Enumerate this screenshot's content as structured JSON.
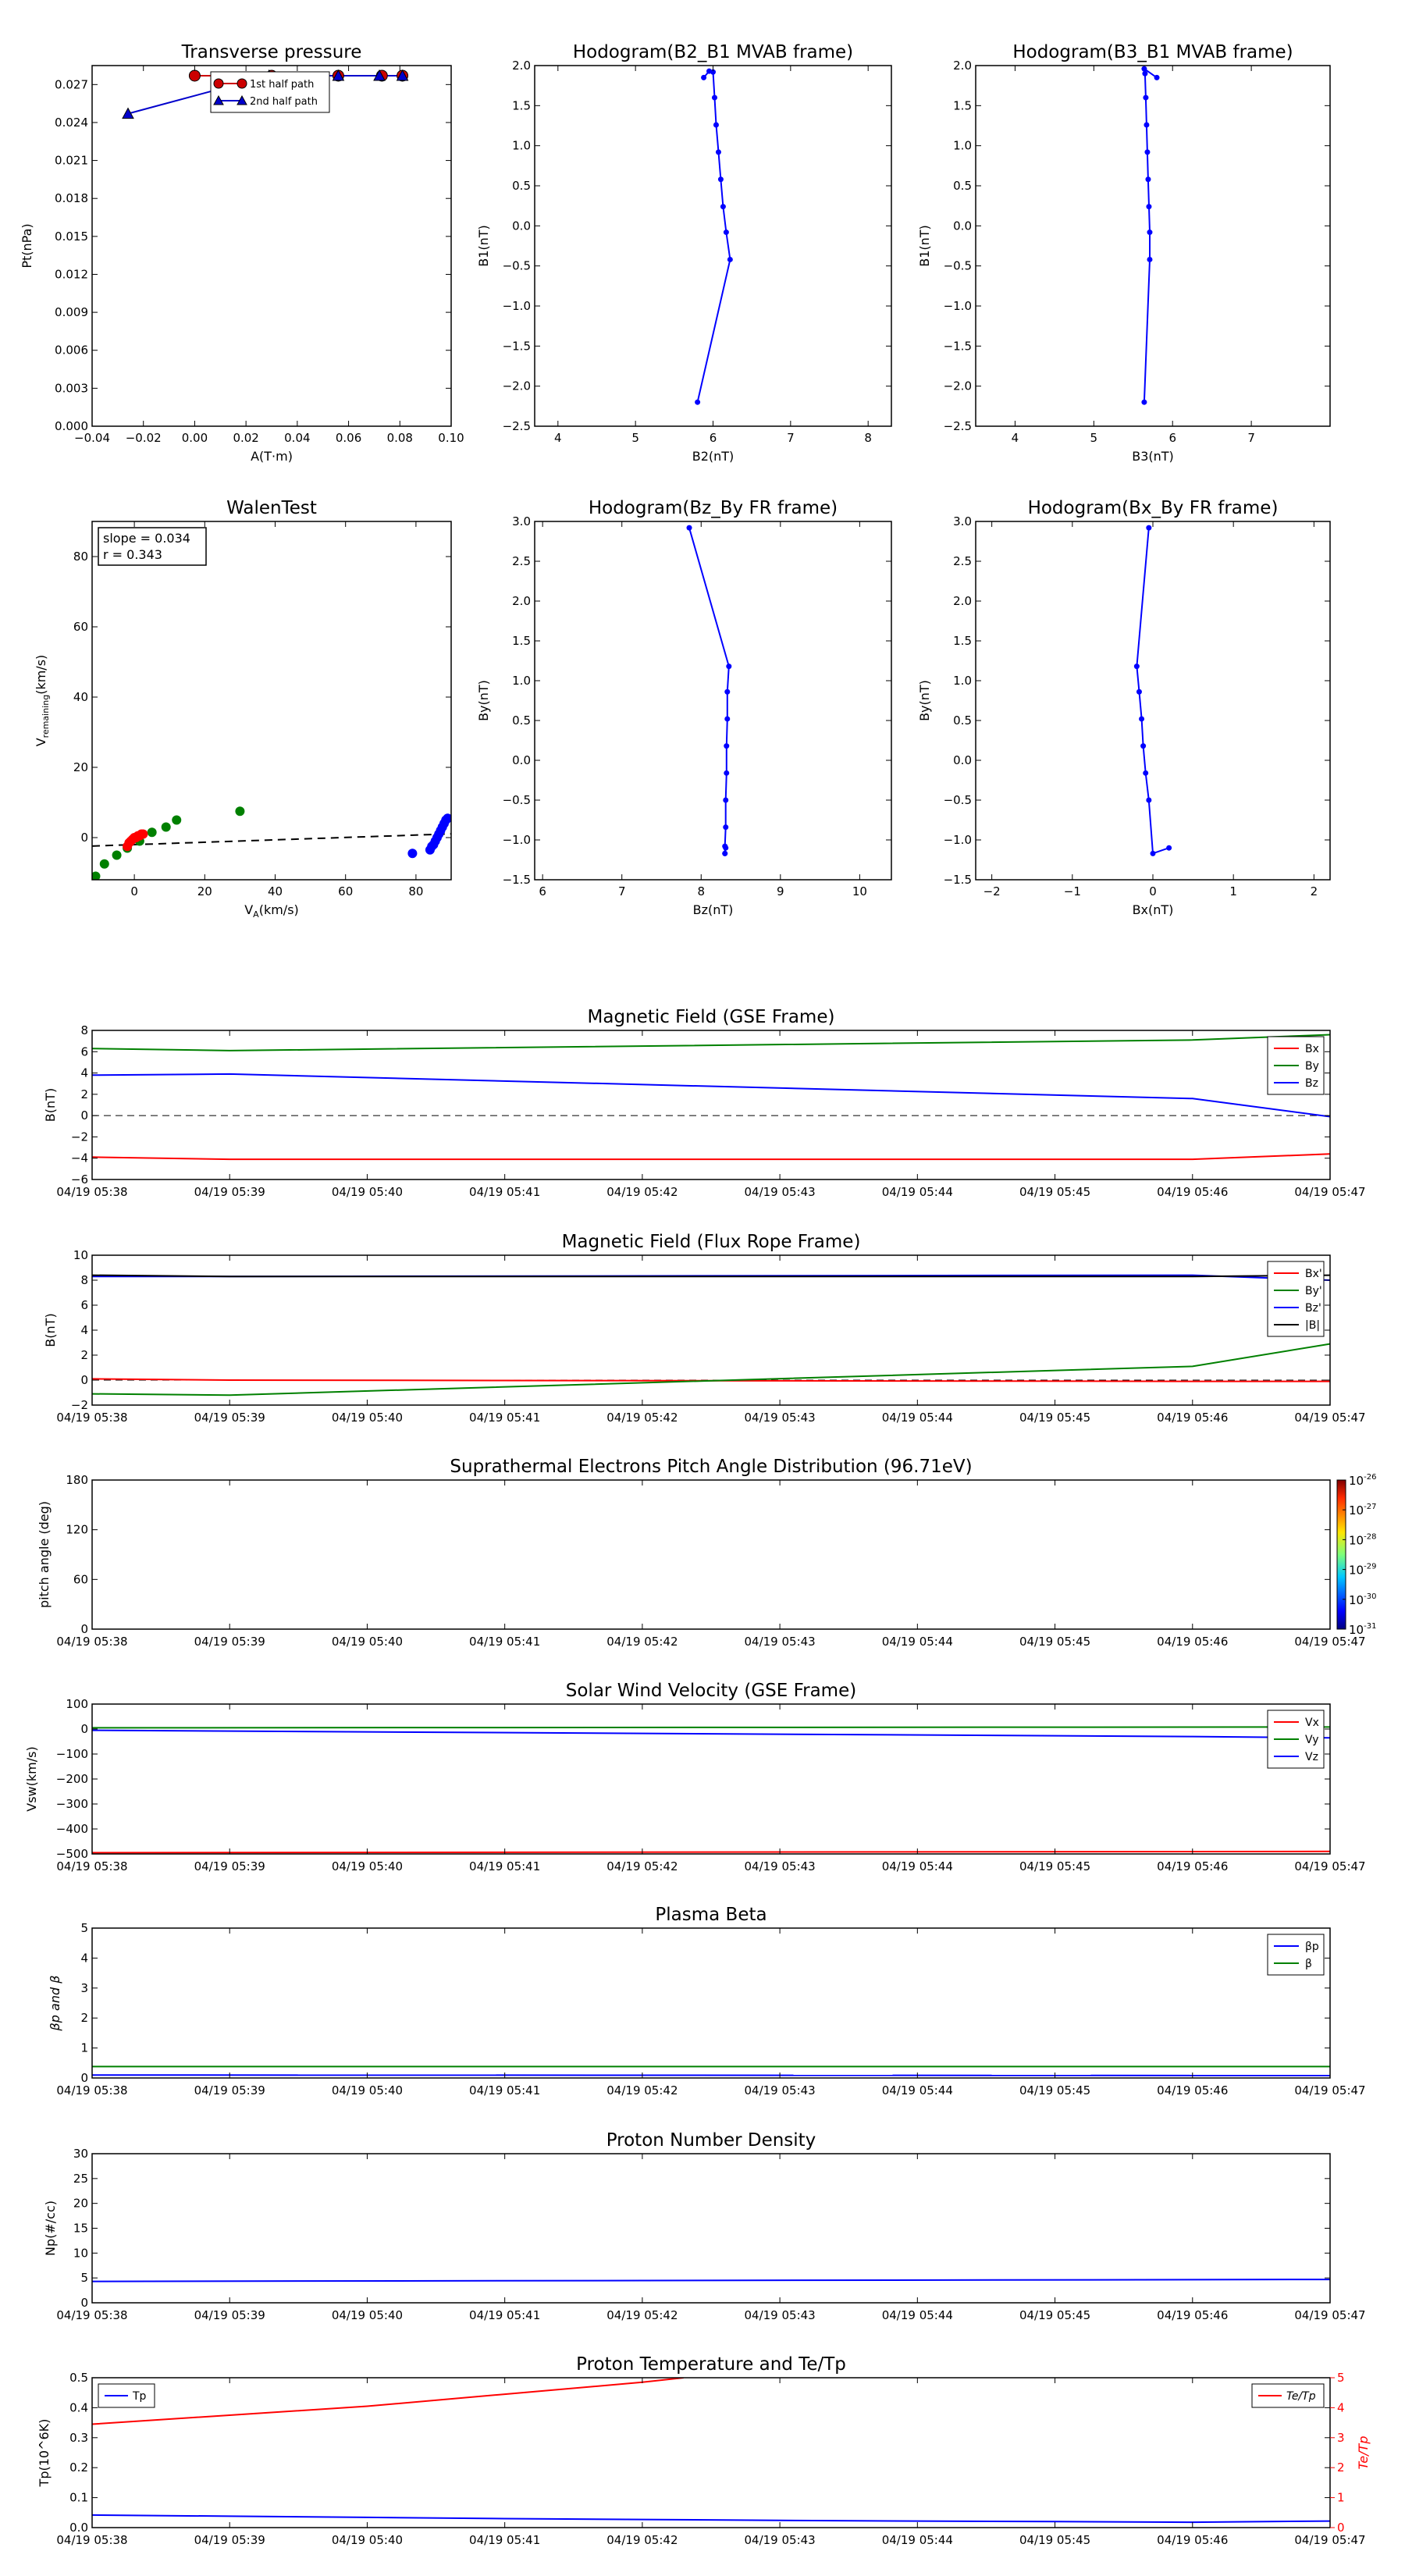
{
  "chart_data": [
    {
      "id": "tp",
      "type": "line",
      "title": "Transverse pressure",
      "xlabel": "A(T·m)",
      "ylabel": "Pt(nPa)",
      "xlim": [
        -0.04,
        0.1
      ],
      "ylim": [
        0,
        0.0285
      ],
      "xticks": [
        -0.04,
        -0.02,
        0,
        0.02,
        0.04,
        0.06,
        0.08,
        0.1
      ],
      "yticks": [
        0,
        0.003,
        0.006,
        0.009,
        0.012,
        0.015,
        0.018,
        0.021,
        0.024,
        0.027
      ],
      "legend": "top-right",
      "series": [
        {
          "name": "1st half path",
          "color": "#cc0000",
          "marker": "circle",
          "x": [
            0.0,
            0.03,
            0.056,
            0.073,
            0.081
          ],
          "y": [
            0.0277,
            0.0277,
            0.0277,
            0.0277,
            0.0277
          ]
        },
        {
          "name": "2nd half path",
          "color": "#0000cc",
          "marker": "triangle",
          "x": [
            -0.026,
            0.029,
            0.056,
            0.072,
            0.081
          ],
          "y": [
            0.0247,
            0.0277,
            0.0277,
            0.0277,
            0.0277
          ]
        }
      ]
    },
    {
      "id": "h1",
      "type": "line",
      "title": "Hodogram(B2_B1 MVAB frame)",
      "xlabel": "B2(nT)",
      "ylabel": "B1(nT)",
      "xlim": [
        3.7,
        8.3
      ],
      "ylim": [
        -2.5,
        2.0
      ],
      "xticks": [
        4,
        5,
        6,
        7,
        8
      ],
      "yticks": [
        -2.5,
        -2.0,
        -1.5,
        -1.0,
        -0.5,
        0.0,
        0.5,
        1.0,
        1.5,
        2.0
      ],
      "series": [
        {
          "color": "#0000ff",
          "x": [
            5.8,
            6.22,
            6.17,
            6.13,
            6.1,
            6.07,
            6.04,
            6.02,
            6.0,
            5.95,
            5.88
          ],
          "y": [
            -2.2,
            -0.42,
            -0.08,
            0.24,
            0.58,
            0.92,
            1.26,
            1.6,
            1.92,
            1.93,
            1.85
          ]
        }
      ]
    },
    {
      "id": "h2",
      "type": "line",
      "title": "Hodogram(B3_B1 MVAB frame)",
      "xlabel": "B3(nT)",
      "ylabel": "B1(nT)",
      "xlim": [
        3.5,
        8.0
      ],
      "ylim": [
        -2.5,
        2.0
      ],
      "xticks": [
        4,
        5,
        6,
        7
      ],
      "yticks": [
        -2.5,
        -2.0,
        -1.5,
        -1.0,
        -0.5,
        0.0,
        0.5,
        1.0,
        1.5,
        2.0
      ],
      "series": [
        {
          "color": "#0000ff",
          "x": [
            5.64,
            5.71,
            5.71,
            5.7,
            5.69,
            5.68,
            5.67,
            5.66,
            5.65,
            5.64,
            5.8
          ],
          "y": [
            -2.2,
            -0.42,
            -0.08,
            0.24,
            0.58,
            0.92,
            1.26,
            1.6,
            1.9,
            1.96,
            1.85
          ]
        }
      ]
    },
    {
      "id": "walen",
      "type": "scatter",
      "title": "WalenTest",
      "xlabel": "V_A(km/s)",
      "ylabel": "V_remaining(km/s)",
      "xlim": [
        -12,
        90
      ],
      "ylim": [
        -12,
        90
      ],
      "xticks": [
        0,
        20,
        40,
        60,
        80
      ],
      "yticks": [
        0,
        20,
        40,
        60,
        80
      ],
      "annotation": [
        "slope = 0.034",
        "r = 0.343"
      ],
      "fit": {
        "slope": 0.034,
        "intercept": -2.0
      },
      "series": [
        {
          "color": "#008000",
          "x": [
            -11,
            -8.5,
            -5,
            -2,
            1.5,
            5,
            9,
            12,
            30
          ],
          "y": [
            -11,
            -7.5,
            -5,
            -3,
            -1,
            1.5,
            3,
            5,
            7.5
          ]
        },
        {
          "color": "#ff0000",
          "x": [
            -2,
            -1.5,
            -1,
            -0.5,
            0,
            0.5,
            1,
            1.5,
            2,
            2.5
          ],
          "y": [
            -2.5,
            -1.5,
            -1,
            -0.5,
            0,
            0,
            0.5,
            0.5,
            1,
            1
          ]
        },
        {
          "color": "#0000ff",
          "x": [
            79,
            84,
            84.5,
            85,
            85.5,
            86,
            86.5,
            87,
            87.5,
            88,
            88.5,
            89
          ],
          "y": [
            -4.5,
            -3.5,
            -2.5,
            -2,
            -1,
            0,
            1,
            2,
            3,
            4,
            5,
            5.5
          ]
        }
      ]
    },
    {
      "id": "h3",
      "type": "line",
      "title": "Hodogram(Bz_By FR frame)",
      "xlabel": "Bz(nT)",
      "ylabel": "By(nT)",
      "xlim": [
        5.9,
        10.4
      ],
      "ylim": [
        -1.5,
        3.0
      ],
      "xticks": [
        6,
        7,
        8,
        9,
        10
      ],
      "yticks": [
        -1.5,
        -1.0,
        -0.5,
        0.0,
        0.5,
        1.0,
        1.5,
        2.0,
        2.5,
        3.0
      ],
      "series": [
        {
          "color": "#0000ff",
          "x": [
            7.85,
            8.35,
            8.33,
            8.33,
            8.32,
            8.32,
            8.31,
            8.31,
            8.3,
            8.3,
            8.3,
            8.31
          ],
          "y": [
            2.92,
            1.18,
            0.86,
            0.52,
            0.18,
            -0.16,
            -0.5,
            -0.84,
            -1.08,
            -1.17,
            -1.17,
            -1.1
          ]
        }
      ]
    },
    {
      "id": "h4",
      "type": "line",
      "title": "Hodogram(Bx_By FR frame)",
      "xlabel": "Bx(nT)",
      "ylabel": "By(nT)",
      "xlim": [
        -2.2,
        2.2
      ],
      "ylim": [
        -1.5,
        3.0
      ],
      "xticks": [
        -2,
        -1,
        0,
        1,
        2
      ],
      "yticks": [
        -1.5,
        -1.0,
        -0.5,
        0.0,
        0.5,
        1.0,
        1.5,
        2.0,
        2.5,
        3.0
      ],
      "series": [
        {
          "color": "#0000ff",
          "x": [
            -0.05,
            -0.2,
            -0.17,
            -0.14,
            -0.12,
            -0.09,
            -0.05,
            0.0,
            0.2
          ],
          "y": [
            2.92,
            1.18,
            0.86,
            0.52,
            0.18,
            -0.16,
            -0.5,
            -1.17,
            -1.1
          ]
        }
      ]
    },
    {
      "id": "bgse",
      "type": "line",
      "title": "Magnetic Field (GSE Frame)",
      "ylabel": "B(nT)",
      "xlim": [
        0,
        9
      ],
      "ylim": [
        -6,
        8
      ],
      "yticks": [
        -6,
        -4,
        -2,
        0,
        2,
        4,
        6,
        8
      ],
      "xticklabels": [
        "04/19 05:38",
        "04/19 05:39",
        "04/19 05:40",
        "04/19 05:41",
        "04/19 05:42",
        "04/19 05:43",
        "04/19 05:44",
        "04/19 05:45",
        "04/19 05:46",
        "04/19 05:47"
      ],
      "legend": "top-right",
      "zero_line": true,
      "series": [
        {
          "name": "Bx",
          "color": "#ff0000",
          "x": [
            0,
            1,
            8,
            9
          ],
          "y": [
            -3.9,
            -4.1,
            -4.1,
            -3.6
          ]
        },
        {
          "name": "By",
          "color": "#008000",
          "x": [
            0,
            1,
            8,
            9
          ],
          "y": [
            6.3,
            6.1,
            7.1,
            7.6
          ]
        },
        {
          "name": "Bz",
          "color": "#0000ff",
          "x": [
            0,
            1,
            8,
            9
          ],
          "y": [
            3.8,
            3.9,
            1.6,
            -0.1
          ]
        }
      ]
    },
    {
      "id": "bfr",
      "type": "line",
      "title": "Magnetic Field (Flux Rope Frame)",
      "ylabel": "B(nT)",
      "xlim": [
        0,
        9
      ],
      "ylim": [
        -2,
        10
      ],
      "yticks": [
        -2,
        0,
        2,
        4,
        6,
        8,
        10
      ],
      "xticklabels": [
        "04/19 05:38",
        "04/19 05:39",
        "04/19 05:40",
        "04/19 05:41",
        "04/19 05:42",
        "04/19 05:43",
        "04/19 05:44",
        "04/19 05:45",
        "04/19 05:46",
        "04/19 05:47"
      ],
      "legend": "top-right",
      "zero_line": true,
      "series": [
        {
          "name": "Bx'",
          "color": "#ff0000",
          "x": [
            0,
            1,
            8,
            9
          ],
          "y": [
            0.1,
            0.0,
            -0.1,
            -0.1
          ]
        },
        {
          "name": "By'",
          "color": "#008000",
          "x": [
            0,
            1,
            8,
            9
          ],
          "y": [
            -1.1,
            -1.2,
            1.1,
            2.9
          ]
        },
        {
          "name": "Bz'",
          "color": "#0000ff",
          "x": [
            0,
            1,
            8,
            9
          ],
          "y": [
            8.3,
            8.3,
            8.4,
            8.0
          ]
        },
        {
          "name": "|B|",
          "color": "#000000",
          "x": [
            0,
            1,
            8,
            9
          ],
          "y": [
            8.4,
            8.3,
            8.3,
            8.4
          ]
        }
      ]
    },
    {
      "id": "pad",
      "type": "heatmap",
      "title": "Suprathermal Electrons Pitch Angle Distribution (96.71eV)",
      "ylabel": "pitch angle (deg)",
      "xlim": [
        0,
        9
      ],
      "ylim": [
        0,
        180
      ],
      "yticks": [
        0,
        60,
        120,
        180
      ],
      "xticklabels": [
        "04/19 05:38",
        "04/19 05:39",
        "04/19 05:40",
        "04/19 05:41",
        "04/19 05:42",
        "04/19 05:43",
        "04/19 05:44",
        "04/19 05:45",
        "04/19 05:46",
        "04/19 05:47"
      ],
      "colorbar": {
        "labels": [
          "10",
          "10",
          "10",
          "10",
          "10",
          "10"
        ],
        "exponents": [
          "-26",
          "-27",
          "-28",
          "-29",
          "-30",
          "-31"
        ]
      }
    },
    {
      "id": "vsw",
      "type": "line",
      "title": "Solar Wind Velocity (GSE Frame)",
      "ylabel": "Vsw(km/s)",
      "xlim": [
        0,
        9
      ],
      "ylim": [
        -500,
        100
      ],
      "yticks": [
        -500,
        -400,
        -300,
        -200,
        -100,
        0,
        100
      ],
      "xticklabels": [
        "04/19 05:38",
        "04/19 05:39",
        "04/19 05:40",
        "04/19 05:41",
        "04/19 05:42",
        "04/19 05:43",
        "04/19 05:44",
        "04/19 05:45",
        "04/19 05:46",
        "04/19 05:47"
      ],
      "legend": "top-right",
      "series": [
        {
          "name": "Vx",
          "color": "#ff0000",
          "x": [
            0,
            9
          ],
          "y": [
            -495,
            -490
          ]
        },
        {
          "name": "Vy",
          "color": "#008000",
          "x": [
            0,
            9
          ],
          "y": [
            5,
            8
          ]
        },
        {
          "name": "Vz",
          "color": "#0000ff",
          "x": [
            0,
            8,
            9
          ],
          "y": [
            -5,
            -30,
            -35
          ]
        }
      ]
    },
    {
      "id": "beta",
      "type": "line",
      "title": "Plasma Beta",
      "ylabel": "βp and β",
      "xlim": [
        0,
        9
      ],
      "ylim": [
        0,
        5
      ],
      "yticks": [
        0,
        1,
        2,
        3,
        4,
        5
      ],
      "xticklabels": [
        "04/19 05:38",
        "04/19 05:39",
        "04/19 05:40",
        "04/19 05:41",
        "04/19 05:42",
        "04/19 05:43",
        "04/19 05:44",
        "04/19 05:45",
        "04/19 05:46",
        "04/19 05:47"
      ],
      "legend": "top-right",
      "series": [
        {
          "name": "βp",
          "color": "#0000ff",
          "x": [
            0,
            9
          ],
          "y": [
            0.1,
            0.08
          ]
        },
        {
          "name": "β",
          "color": "#008000",
          "x": [
            0,
            9
          ],
          "y": [
            0.38,
            0.38
          ]
        }
      ]
    },
    {
      "id": "np",
      "type": "line",
      "title": "Proton Number Density",
      "ylabel": "Np(#/cc)",
      "xlim": [
        0,
        9
      ],
      "ylim": [
        0,
        30
      ],
      "yticks": [
        0,
        5,
        10,
        15,
        20,
        25,
        30
      ],
      "xticklabels": [
        "04/19 05:38",
        "04/19 05:39",
        "04/19 05:40",
        "04/19 05:41",
        "04/19 05:42",
        "04/19 05:43",
        "04/19 05:44",
        "04/19 05:45",
        "04/19 05:46",
        "04/19 05:47"
      ],
      "series": [
        {
          "color": "#0000ff",
          "x": [
            0,
            9
          ],
          "y": [
            4.3,
            4.7
          ]
        }
      ]
    },
    {
      "id": "temp",
      "type": "line",
      "title": "Proton Temperature and Te/Tp",
      "ylabel": "Tp(10^6K)",
      "y2label": "Te/Tp",
      "xlim": [
        0,
        9
      ],
      "ylim": [
        0,
        0.5
      ],
      "yticks": [
        0,
        0.1,
        0.2,
        0.3,
        0.4,
        0.5
      ],
      "y2lim": [
        0,
        5
      ],
      "y2ticks": [
        0,
        1,
        2,
        3,
        4,
        5
      ],
      "xticklabels": [
        "04/19 05:38",
        "04/19 05:39",
        "04/19 05:40",
        "04/19 05:41",
        "04/19 05:42",
        "04/19 05:43",
        "04/19 05:44",
        "04/19 05:45",
        "04/19 05:46",
        "04/19 05:47"
      ],
      "series": [
        {
          "name": "Tp",
          "color": "#0000ff",
          "axis": "left",
          "x": [
            0,
            1,
            2,
            3,
            4,
            5,
            6,
            7,
            8,
            9
          ],
          "y": [
            0.042,
            0.038,
            0.034,
            0.03,
            0.027,
            0.024,
            0.022,
            0.02,
            0.018,
            0.022
          ]
        },
        {
          "name": "Te/Tp",
          "color": "#ff0000",
          "axis": "right",
          "x": [
            0,
            1,
            2,
            3,
            4,
            4.3
          ],
          "y": [
            3.45,
            3.75,
            4.05,
            4.45,
            4.85,
            5.0
          ]
        }
      ]
    }
  ]
}
